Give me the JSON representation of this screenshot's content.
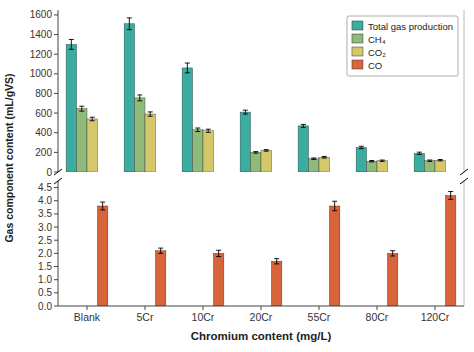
{
  "chart_data": [
    {
      "type": "bar",
      "y_label": "Gas component content (mL/gVS)",
      "categories": [
        "Blank",
        "5Cr",
        "10Cr",
        "20Cr",
        "55Cr",
        "80Cr",
        "120Cr"
      ],
      "series": [
        {
          "name": "Total gas production",
          "color": "#3aada0",
          "values": [
            1300,
            1510,
            1060,
            610,
            470,
            250,
            190
          ],
          "errors": [
            50,
            60,
            50,
            20,
            15,
            12,
            12
          ]
        },
        {
          "name": "CH₄",
          "color": "#8fba7a",
          "values": [
            645,
            755,
            430,
            200,
            135,
            110,
            115
          ],
          "errors": [
            25,
            30,
            18,
            8,
            8,
            7,
            7
          ]
        },
        {
          "name": "CO₂",
          "color": "#d4c86a",
          "values": [
            540,
            590,
            420,
            220,
            150,
            115,
            120
          ],
          "errors": [
            18,
            22,
            16,
            8,
            8,
            7,
            7
          ]
        }
      ],
      "ylim": [
        0,
        1650
      ],
      "yticks": [
        0,
        200,
        400,
        600,
        800,
        1000,
        1200,
        1400,
        1600
      ],
      "grid": false,
      "legend": "upper right",
      "tick_labels": "y"
    },
    {
      "type": "bar",
      "x_label": "Chromium content (mg/L)",
      "categories": [
        "Blank",
        "5Cr",
        "10Cr",
        "20Cr",
        "55Cr",
        "80Cr",
        "120Cr"
      ],
      "series": [
        {
          "name": "CO",
          "color": "#d9633b",
          "values": [
            3.8,
            2.1,
            2.0,
            1.7,
            3.8,
            2.0,
            4.2
          ],
          "errors": [
            0.15,
            0.1,
            0.12,
            0.1,
            0.18,
            0.1,
            0.15
          ]
        }
      ],
      "ylim": [
        0.0,
        4.75
      ],
      "yticks": [
        {
          "value": 0.0,
          "label": "0.0"
        },
        0.5,
        {
          "value": 1.0,
          "label": "1.0"
        },
        1.5,
        {
          "value": 2.0,
          "label": "2.0"
        },
        2.5,
        {
          "value": 3.0,
          "label": "3.0"
        },
        3.5,
        {
          "value": 4.0,
          "label": "4.0"
        },
        4.5
      ],
      "grid": false,
      "tick_labels": true
    }
  ]
}
